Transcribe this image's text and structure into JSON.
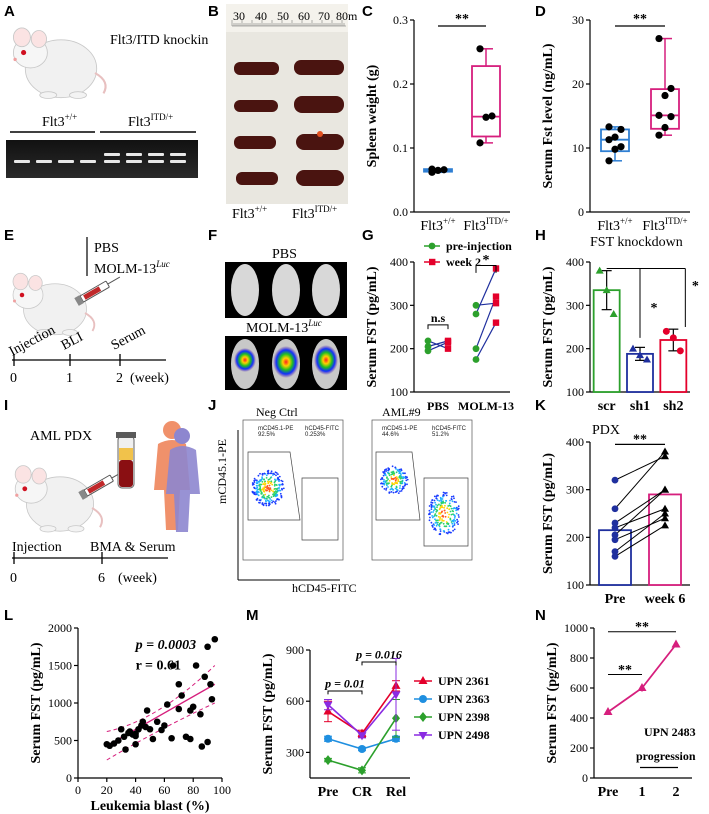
{
  "panels": {
    "A": {
      "letter": "A",
      "title": "Flt3/ITD knockin",
      "g1": "Flt3",
      "g1sup": "+/+",
      "g2": "Flt3",
      "g2sup": "ITD/+"
    },
    "B": {
      "letter": "B",
      "ruler": [
        "30",
        "40",
        "50",
        "60",
        "70",
        "80m"
      ],
      "g1": "Flt3",
      "g1sup": "+/+",
      "g2": "Flt3",
      "g2sup": "ITD/+"
    },
    "C": {
      "letter": "C",
      "sig": "**"
    },
    "D": {
      "letter": "D",
      "sig": "**"
    },
    "E": {
      "letter": "E",
      "leg1": "PBS",
      "leg2": "MOLM-13",
      "leg2sup": "Luc",
      "tl": [
        "Injection",
        "BLI",
        "Serum"
      ],
      "tn": [
        "0",
        "1",
        "2"
      ],
      "unit": "(week)"
    },
    "F": {
      "letter": "F",
      "t1": "PBS",
      "t2": "MOLM-13",
      "t2sup": "Luc"
    },
    "G": {
      "letter": "G",
      "sig1": "n.s",
      "sig2": "*"
    },
    "H": {
      "letter": "H",
      "title": "FST knockdown",
      "sig1": "*",
      "sig2": "*"
    },
    "I": {
      "letter": "I",
      "title": "AML PDX",
      "tl": [
        "Injection",
        "BMA & Serum"
      ],
      "tn": [
        "0",
        "6"
      ],
      "unit": "(week)"
    },
    "J": {
      "letter": "J",
      "t1": "Neg Ctrl",
      "t2": "AML#9",
      "ylab": "mCD45.1-PE",
      "xlab": "hCD45-FITC",
      "g1a": "mCD45.1-PE",
      "g1av": "92.5%",
      "g1b": "hCD45-FITC",
      "g1bv": "0.253%",
      "g2a": "mCD45.1-PE",
      "g2av": "44.6%",
      "g2b": "hCD45-FITC",
      "g2bv": "51.2%"
    },
    "K": {
      "letter": "K",
      "title": "PDX",
      "sig": "**"
    },
    "L": {
      "letter": "L",
      "p": "p = 0.0003",
      "r": "r = 0.61"
    },
    "M": {
      "letter": "M",
      "p1": "p = 0.01",
      "p2": "p = 0.016"
    },
    "N": {
      "letter": "N",
      "sig1": "**",
      "sig2": "**",
      "upn": "UPN 2483",
      "prog": "progression"
    }
  },
  "chart_data": [
    {
      "id": "C",
      "type": "box",
      "ylabel": "Spleen weight (g)",
      "ylim": [
        0,
        0.3
      ],
      "yticks": [
        0.0,
        0.1,
        0.2,
        0.3
      ],
      "categories": [
        "Flt3+/+",
        "Flt3ITD/+"
      ],
      "colors": [
        "#2f7fd3",
        "#d61f7d"
      ],
      "points": [
        [
          0.062,
          0.065,
          0.066,
          0.067
        ],
        [
          0.108,
          0.148,
          0.15,
          0.255
        ]
      ],
      "box": [
        {
          "q1": 0.063,
          "med": 0.065,
          "q3": 0.067,
          "lo": 0.062,
          "hi": 0.067
        },
        {
          "q1": 0.118,
          "med": 0.149,
          "q3": 0.228,
          "lo": 0.108,
          "hi": 0.255
        }
      ]
    },
    {
      "id": "D",
      "type": "box",
      "ylabel": "Serum Fst level (ng/mL)",
      "ylim": [
        0,
        30
      ],
      "yticks": [
        0,
        10,
        20,
        30
      ],
      "categories": [
        "Flt3+/+",
        "Flt3ITD/+"
      ],
      "colors": [
        "#2f7fd3",
        "#d61f7d"
      ],
      "points": [
        [
          8.0,
          9.8,
          10.2,
          11.3,
          11.7,
          12.9,
          13.3
        ],
        [
          12.0,
          13.2,
          14.9,
          15.1,
          18.2,
          19.3,
          27.1
        ]
      ],
      "box": [
        {
          "q1": 9.5,
          "med": 11.3,
          "q3": 12.9,
          "lo": 8.0,
          "hi": 13.3
        },
        {
          "q1": 13.0,
          "med": 15.1,
          "q3": 19.2,
          "lo": 12.0,
          "hi": 27.1
        }
      ]
    },
    {
      "id": "G",
      "type": "paired",
      "ylabel": "Serum FST (pg/mL)",
      "ylim": [
        100,
        400
      ],
      "yticks": [
        100,
        200,
        300,
        400
      ],
      "categories": [
        "PBS",
        "MOLM-13"
      ],
      "series": [
        {
          "name": "pre-injection",
          "color": "#2ca02c"
        },
        {
          "name": "week 2",
          "color": "#e4002b"
        }
      ],
      "pairs": [
        [
          [
            195,
            215
          ],
          [
            205,
            218
          ],
          [
            218,
            200
          ]
        ],
        [
          [
            175,
            260
          ],
          [
            200,
            320
          ],
          [
            280,
            385
          ],
          [
            300,
            305
          ]
        ]
      ]
    },
    {
      "id": "H",
      "type": "bar",
      "ylabel": "Serum FST (pg/mL)",
      "ylim": [
        100,
        400
      ],
      "yticks": [
        100,
        200,
        300,
        400
      ],
      "categories": [
        "scr",
        "sh1",
        "sh2"
      ],
      "colors": [
        "#2ca02c",
        "#1f2f9e",
        "#e4002b"
      ],
      "values": [
        335,
        188,
        220
      ],
      "err": [
        45,
        15,
        25
      ],
      "points": [
        [
          380,
          335,
          280
        ],
        [
          200,
          185,
          175
        ],
        [
          240,
          225,
          195
        ]
      ]
    },
    {
      "id": "K",
      "type": "paired-bar",
      "ylabel": "Serum FST (pg/mL)",
      "ylim": [
        100,
        400
      ],
      "yticks": [
        100,
        200,
        300,
        400
      ],
      "categories": [
        "Pre",
        "week 6"
      ],
      "colors": [
        "#1f2f9e",
        "#d61f7d"
      ],
      "values": [
        215,
        290
      ],
      "pairs": [
        [
          320,
          370
        ],
        [
          260,
          380
        ],
        [
          230,
          300
        ],
        [
          220,
          260
        ],
        [
          205,
          300
        ],
        [
          195,
          240
        ],
        [
          170,
          250
        ],
        [
          160,
          225
        ]
      ]
    },
    {
      "id": "L",
      "type": "scatter",
      "xlabel": "Leukemia blast (%)",
      "ylabel": "Serum FST (pg/mL)",
      "xlim": [
        0,
        100
      ],
      "ylim": [
        0,
        2000
      ],
      "xticks": [
        0,
        20,
        40,
        60,
        80,
        100
      ],
      "yticks": [
        0,
        500,
        1000,
        1500,
        2000
      ],
      "x": [
        20,
        22,
        25,
        28,
        30,
        32,
        33,
        35,
        36,
        38,
        40,
        40,
        42,
        44,
        45,
        47,
        50,
        52,
        55,
        58,
        60,
        62,
        65,
        66,
        70,
        72,
        75,
        78,
        80,
        82,
        85,
        88,
        90,
        92,
        93,
        95,
        40,
        48,
        86,
        78,
        70,
        90
      ],
      "y": [
        450,
        430,
        460,
        500,
        650,
        550,
        380,
        600,
        620,
        580,
        590,
        560,
        650,
        700,
        750,
        680,
        650,
        520,
        750,
        640,
        700,
        980,
        530,
        1500,
        1250,
        1100,
        550,
        900,
        950,
        1500,
        850,
        1350,
        1750,
        1250,
        1050,
        1850,
        450,
        900,
        420,
        520,
        920,
        480
      ],
      "fit": [
        [
          20,
          430
        ],
        [
          95,
          1250
        ]
      ]
    },
    {
      "id": "M",
      "type": "line",
      "ylabel": "Serum FST (pg/mL)",
      "ylim": [
        150,
        900
      ],
      "yticks": [
        300,
        600,
        900
      ],
      "categories": [
        "Pre",
        "CR",
        "Rel"
      ],
      "series": [
        {
          "name": "UPN 2361",
          "color": "#e4002b",
          "values": [
            540,
            410,
            690
          ],
          "err": [
            60,
            20,
            30
          ]
        },
        {
          "name": "UPN 2363",
          "color": "#1f8fe0",
          "values": [
            380,
            320,
            380
          ],
          "err": [
            15,
            10,
            15
          ]
        },
        {
          "name": "UPN 2398",
          "color": "#2ca02c",
          "values": [
            255,
            195,
            500
          ],
          "err": [
            10,
            15,
            110
          ]
        },
        {
          "name": "UPN 2498",
          "color": "#8a2be2",
          "values": [
            580,
            400,
            640
          ],
          "err": [
            30,
            15,
            210
          ]
        }
      ]
    },
    {
      "id": "N",
      "type": "line",
      "ylabel": "Serum FST (pg/mL)",
      "ylim": [
        0,
        1000
      ],
      "yticks": [
        0,
        200,
        400,
        600,
        800,
        1000
      ],
      "categories": [
        "Pre",
        "1",
        "2"
      ],
      "color": "#d61f7d",
      "values": [
        440,
        600,
        890
      ],
      "err": [
        5,
        25,
        5
      ]
    }
  ]
}
